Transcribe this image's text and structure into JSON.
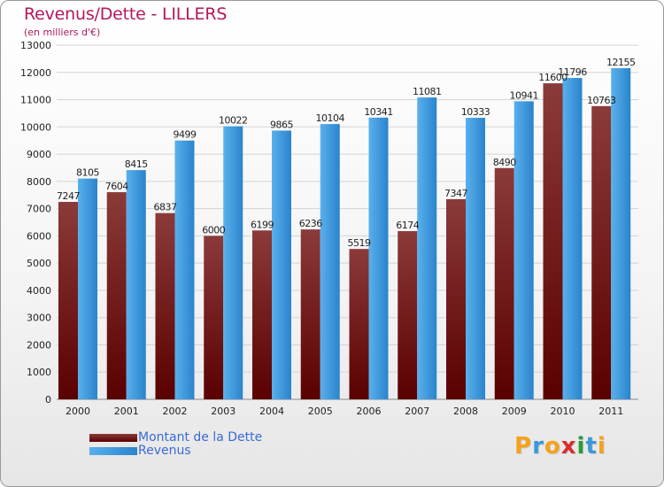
{
  "title": "Revenus/Dette - LILLERS",
  "subtitle": "(en milliers d'€)",
  "logo": {
    "text": "Proxiti",
    "letters": [
      "P",
      "r",
      "o",
      "x",
      "i",
      "t",
      "i"
    ],
    "colors": [
      "#f5a21b",
      "#3a9ad9",
      "#f5a21b",
      "#d92d2d",
      "#2a9a3a",
      "#3a9ad9",
      "#f5a21b"
    ]
  },
  "colors": {
    "dette_light": "#8b3a3a",
    "dette_dark": "#5a0000",
    "revenus_light": "#5ab0ec",
    "revenus_dark": "#2a84cc",
    "grid": "#d4d4d4",
    "axis_text": "#222222"
  },
  "chart_data": {
    "type": "bar",
    "title": "Revenus/Dette - LILLERS",
    "subtitle": "(en milliers d'€)",
    "categories": [
      "2000",
      "2001",
      "2002",
      "2003",
      "2004",
      "2005",
      "2006",
      "2007",
      "2008",
      "2009",
      "2010",
      "2011"
    ],
    "series": [
      {
        "name": "Montant de la Dette",
        "values": [
          7247,
          7604,
          6837,
          6000,
          6199,
          6236,
          5519,
          6174,
          7347,
          8490,
          11600,
          10763
        ],
        "labels": [
          "7247",
          "7604",
          "6837",
          "6000",
          "6199",
          "6236",
          "5519",
          "6174",
          "7347",
          "8490",
          "11600",
          "10763"
        ]
      },
      {
        "name": "Revenus",
        "values": [
          8105,
          8415,
          9499,
          10022,
          9865,
          10104,
          10341,
          11081,
          10333,
          10941,
          11796,
          12155
        ],
        "labels": [
          "8105",
          "8415",
          "9499",
          "10022",
          "9865",
          "10104",
          "10341",
          "11081",
          "10333",
          "10941",
          "11796",
          "12155"
        ]
      }
    ],
    "yticks": [
      "0",
      "1000",
      "2000",
      "3000",
      "4000",
      "5000",
      "6000",
      "7000",
      "8000",
      "9000",
      "10000",
      "11000",
      "12000",
      "13000"
    ],
    "ylim": [
      0,
      13000
    ],
    "grid": true,
    "legend": "bottom-left"
  }
}
